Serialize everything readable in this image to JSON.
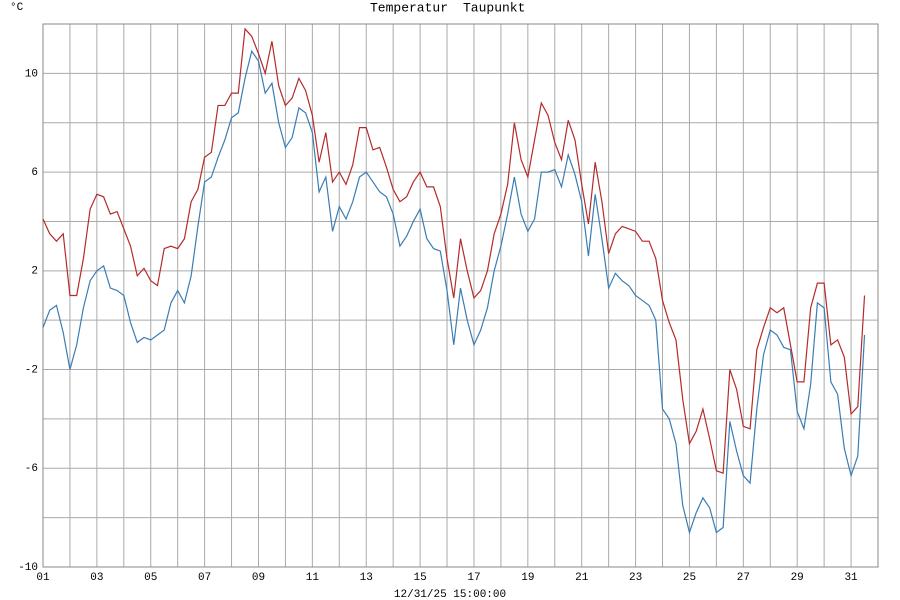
{
  "chart_data": {
    "type": "line",
    "y_unit": "°C",
    "footer": "12/31/25 15:00:00",
    "x": [
      1,
      1.25,
      1.5,
      1.75,
      2,
      2.25,
      2.5,
      2.75,
      3,
      3.25,
      3.5,
      3.75,
      4,
      4.25,
      4.5,
      4.75,
      5,
      5.25,
      5.5,
      5.75,
      6,
      6.25,
      6.5,
      6.75,
      7,
      7.25,
      7.5,
      7.75,
      8,
      8.25,
      8.5,
      8.75,
      9,
      9.25,
      9.5,
      9.75,
      10,
      10.25,
      10.5,
      10.75,
      11,
      11.25,
      11.5,
      11.75,
      12,
      12.25,
      12.5,
      12.75,
      13,
      13.25,
      13.5,
      13.75,
      14,
      14.25,
      14.5,
      14.75,
      15,
      15.25,
      15.5,
      15.75,
      16,
      16.25,
      16.5,
      16.75,
      17,
      17.25,
      17.5,
      17.75,
      18,
      18.25,
      18.5,
      18.75,
      19,
      19.25,
      19.5,
      19.75,
      20,
      20.25,
      20.5,
      20.75,
      21,
      21.25,
      21.5,
      21.75,
      22,
      22.25,
      22.5,
      22.75,
      23,
      23.25,
      23.5,
      23.75,
      24,
      24.25,
      24.5,
      24.75,
      25,
      25.25,
      25.5,
      25.75,
      26,
      26.25,
      26.5,
      26.75,
      27,
      27.25,
      27.5,
      27.75,
      28,
      28.25,
      28.5,
      28.75,
      29,
      29.25,
      29.5,
      29.75,
      30,
      30.25,
      30.5,
      30.75,
      31,
      31.25,
      31.5
    ],
    "series": [
      {
        "name": "Temperatur",
        "color": "#b52b2b",
        "values": [
          4.1,
          3.5,
          3.2,
          3.5,
          1.0,
          1.0,
          2.5,
          4.5,
          5.1,
          5.0,
          4.3,
          4.4,
          3.7,
          3.0,
          1.8,
          2.1,
          1.6,
          1.4,
          2.9,
          3.0,
          2.9,
          3.3,
          4.8,
          5.3,
          6.6,
          6.8,
          8.7,
          8.7,
          9.2,
          9.2,
          11.8,
          11.5,
          10.8,
          10.0,
          11.3,
          9.5,
          8.7,
          9.0,
          9.8,
          9.3,
          8.3,
          6.4,
          7.6,
          5.6,
          6.0,
          5.5,
          6.3,
          7.8,
          7.8,
          6.9,
          7.0,
          6.2,
          5.3,
          4.8,
          5.0,
          5.6,
          6.0,
          5.4,
          5.4,
          4.6,
          2.5,
          0.9,
          3.3,
          2.0,
          0.9,
          1.2,
          2.0,
          3.5,
          4.3,
          5.5,
          8.0,
          6.5,
          5.8,
          7.3,
          8.8,
          8.3,
          7.2,
          6.5,
          8.1,
          7.3,
          5.5,
          3.9,
          6.4,
          4.8,
          2.7,
          3.5,
          3.8,
          3.7,
          3.6,
          3.2,
          3.2,
          2.5,
          0.8,
          -0.1,
          -0.8,
          -3.2,
          -5.0,
          -4.5,
          -3.6,
          -4.8,
          -6.1,
          -6.2,
          -2.0,
          -2.8,
          -4.3,
          -4.4,
          -1.2,
          -0.3,
          0.5,
          0.3,
          0.5,
          -1.0,
          -2.5,
          -2.5,
          0.5,
          1.5,
          1.5,
          -1.0,
          -0.8,
          -1.5,
          -3.8,
          -3.5,
          1.0
        ]
      },
      {
        "name": "Taupunkt",
        "color": "#3a7db5",
        "values": [
          -0.3,
          0.4,
          0.6,
          -0.5,
          -2.0,
          -1.0,
          0.5,
          1.6,
          2.0,
          2.2,
          1.3,
          1.2,
          1.0,
          -0.1,
          -0.9,
          -0.7,
          -0.8,
          -0.6,
          -0.4,
          0.7,
          1.2,
          0.7,
          1.8,
          3.8,
          5.6,
          5.8,
          6.6,
          7.3,
          8.2,
          8.4,
          9.8,
          10.9,
          10.5,
          9.2,
          9.6,
          8.0,
          7.0,
          7.4,
          8.6,
          8.4,
          7.6,
          5.2,
          5.8,
          3.6,
          4.6,
          4.1,
          4.8,
          5.8,
          6.0,
          5.6,
          5.2,
          5.0,
          4.3,
          3.0,
          3.4,
          4.0,
          4.5,
          3.3,
          2.9,
          2.8,
          1.2,
          -1.0,
          1.3,
          0.0,
          -1.0,
          -0.4,
          0.5,
          2.0,
          3.0,
          4.3,
          5.8,
          4.3,
          3.6,
          4.1,
          6.0,
          6.0,
          6.1,
          5.4,
          6.7,
          5.9,
          4.8,
          2.6,
          5.1,
          3.3,
          1.3,
          1.9,
          1.6,
          1.4,
          1.0,
          0.8,
          0.6,
          0.0,
          -3.6,
          -4.0,
          -5.0,
          -7.5,
          -8.6,
          -7.8,
          -7.2,
          -7.6,
          -8.6,
          -8.4,
          -4.1,
          -5.3,
          -6.3,
          -6.6,
          -3.6,
          -1.4,
          -0.4,
          -0.6,
          -1.1,
          -1.2,
          -3.7,
          -4.4,
          -2.6,
          0.7,
          0.5,
          -2.5,
          -3.0,
          -5.2,
          -6.3,
          -5.5,
          -0.6
        ]
      }
    ],
    "xlim": [
      1,
      32
    ],
    "xticks": [
      {
        "value": 1,
        "label": "01"
      },
      {
        "value": 3,
        "label": "03"
      },
      {
        "value": 5,
        "label": "05"
      },
      {
        "value": 7,
        "label": "07"
      },
      {
        "value": 9,
        "label": "09"
      },
      {
        "value": 11,
        "label": "11"
      },
      {
        "value": 13,
        "label": "13"
      },
      {
        "value": 15,
        "label": "15"
      },
      {
        "value": 17,
        "label": "17"
      },
      {
        "value": 19,
        "label": "19"
      },
      {
        "value": 21,
        "label": "21"
      },
      {
        "value": 23,
        "label": "23"
      },
      {
        "value": 25,
        "label": "25"
      },
      {
        "value": 27,
        "label": "27"
      },
      {
        "value": 29,
        "label": "29"
      },
      {
        "value": 31,
        "label": "31"
      }
    ],
    "xminor": [
      2,
      4,
      6,
      8,
      10,
      12,
      14,
      16,
      18,
      20,
      22,
      24,
      26,
      28,
      30
    ],
    "ylim": [
      -10,
      12
    ],
    "yticks": [
      -10,
      -6,
      -2,
      2,
      6,
      10
    ],
    "yminor": [
      -8,
      -4,
      0,
      4,
      8,
      12
    ],
    "grid": true
  }
}
